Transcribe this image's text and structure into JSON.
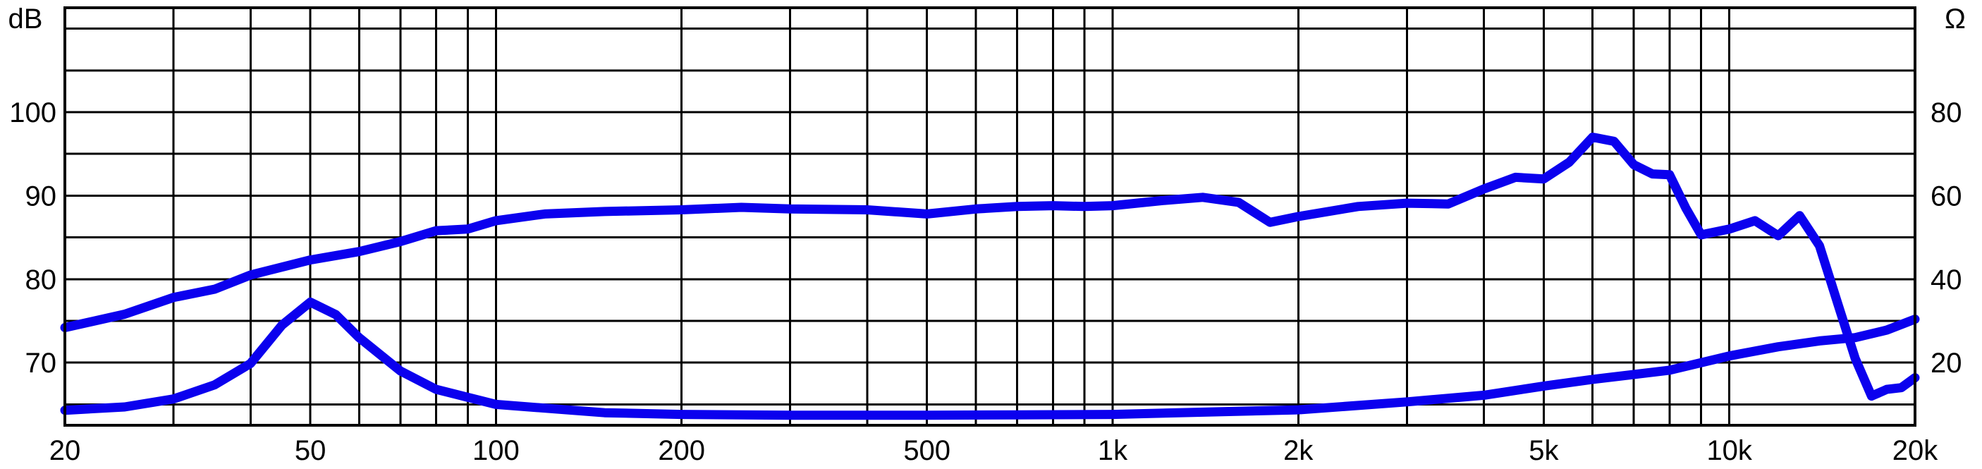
{
  "chart_data": {
    "type": "line",
    "x_scale": "log",
    "xlim": [
      20,
      20000
    ],
    "ylim_left": [
      62.5,
      112.5
    ],
    "ylim_right": [
      5,
      105
    ],
    "grid": true,
    "ylabel_left": "dB",
    "ylabel_right": "Ω",
    "x_ticks": [
      {
        "value": 20,
        "label": "20"
      },
      {
        "value": 50,
        "label": "50"
      },
      {
        "value": 100,
        "label": "100"
      },
      {
        "value": 200,
        "label": "200"
      },
      {
        "value": 500,
        "label": "500"
      },
      {
        "value": 1000,
        "label": "1k"
      },
      {
        "value": 2000,
        "label": "2k"
      },
      {
        "value": 5000,
        "label": "5k"
      },
      {
        "value": 10000,
        "label": "10k"
      },
      {
        "value": 20000,
        "label": "20k"
      }
    ],
    "y_ticks_left": [
      {
        "value": 70,
        "label": "70"
      },
      {
        "value": 80,
        "label": "80"
      },
      {
        "value": 90,
        "label": "90"
      },
      {
        "value": 100,
        "label": "100"
      }
    ],
    "y_ticks_right": [
      {
        "value": 20,
        "label": "20"
      },
      {
        "value": 40,
        "label": "40"
      },
      {
        "value": 60,
        "label": "60"
      },
      {
        "value": 80,
        "label": "80"
      }
    ],
    "x_gridlines": [
      20,
      30,
      40,
      50,
      60,
      70,
      80,
      90,
      100,
      200,
      300,
      400,
      500,
      600,
      700,
      800,
      900,
      1000,
      2000,
      3000,
      4000,
      5000,
      6000,
      7000,
      8000,
      9000,
      10000,
      20000
    ],
    "y_gridlines_left": [
      65,
      70,
      75,
      80,
      85,
      90,
      95,
      100,
      105,
      110
    ],
    "series": [
      {
        "axis": "left",
        "color": "#0b00ee",
        "points": [
          [
            20,
            74.2
          ],
          [
            25,
            75.8
          ],
          [
            30,
            77.8
          ],
          [
            35,
            78.8
          ],
          [
            40,
            80.5
          ],
          [
            50,
            82.3
          ],
          [
            60,
            83.3
          ],
          [
            70,
            84.5
          ],
          [
            80,
            85.8
          ],
          [
            90,
            86.0
          ],
          [
            100,
            87.0
          ],
          [
            120,
            87.8
          ],
          [
            150,
            88.1
          ],
          [
            200,
            88.3
          ],
          [
            250,
            88.6
          ],
          [
            300,
            88.4
          ],
          [
            400,
            88.3
          ],
          [
            500,
            87.8
          ],
          [
            600,
            88.4
          ],
          [
            700,
            88.7
          ],
          [
            800,
            88.8
          ],
          [
            900,
            88.7
          ],
          [
            1000,
            88.8
          ],
          [
            1200,
            89.4
          ],
          [
            1400,
            89.8
          ],
          [
            1600,
            89.2
          ],
          [
            1800,
            86.8
          ],
          [
            2000,
            87.5
          ],
          [
            2500,
            88.7
          ],
          [
            3000,
            89.1
          ],
          [
            3500,
            89.0
          ],
          [
            4000,
            90.8
          ],
          [
            4500,
            92.2
          ],
          [
            5000,
            92.0
          ],
          [
            5500,
            94.0
          ],
          [
            6000,
            97.0
          ],
          [
            6500,
            96.5
          ],
          [
            7000,
            93.7
          ],
          [
            7500,
            92.6
          ],
          [
            8000,
            92.5
          ],
          [
            8500,
            88.5
          ],
          [
            9000,
            85.3
          ],
          [
            10000,
            86.0
          ],
          [
            11000,
            87.0
          ],
          [
            12000,
            85.2
          ],
          [
            13000,
            87.6
          ],
          [
            14000,
            84.0
          ],
          [
            15000,
            77.0
          ],
          [
            16000,
            70.5
          ],
          [
            17000,
            66.0
          ],
          [
            18000,
            66.8
          ],
          [
            19000,
            67.0
          ],
          [
            20000,
            68.2
          ]
        ]
      },
      {
        "axis": "right",
        "color": "#0b00ee",
        "points": [
          [
            20,
            8.6
          ],
          [
            25,
            9.4
          ],
          [
            30,
            11.3
          ],
          [
            35,
            14.7
          ],
          [
            40,
            19.8
          ],
          [
            45,
            29.0
          ],
          [
            50,
            34.5
          ],
          [
            55,
            31.5
          ],
          [
            60,
            26.0
          ],
          [
            70,
            18.0
          ],
          [
            80,
            13.6
          ],
          [
            100,
            10.0
          ],
          [
            150,
            8.0
          ],
          [
            200,
            7.6
          ],
          [
            300,
            7.4
          ],
          [
            500,
            7.4
          ],
          [
            700,
            7.5
          ],
          [
            1000,
            7.6
          ],
          [
            2000,
            8.7
          ],
          [
            3000,
            10.6
          ],
          [
            4000,
            12.2
          ],
          [
            5000,
            14.4
          ],
          [
            6000,
            16.0
          ],
          [
            8000,
            18.2
          ],
          [
            10000,
            21.6
          ],
          [
            12000,
            23.8
          ],
          [
            14000,
            25.2
          ],
          [
            16000,
            26.0
          ],
          [
            18000,
            27.8
          ],
          [
            20000,
            30.4
          ]
        ]
      }
    ]
  }
}
